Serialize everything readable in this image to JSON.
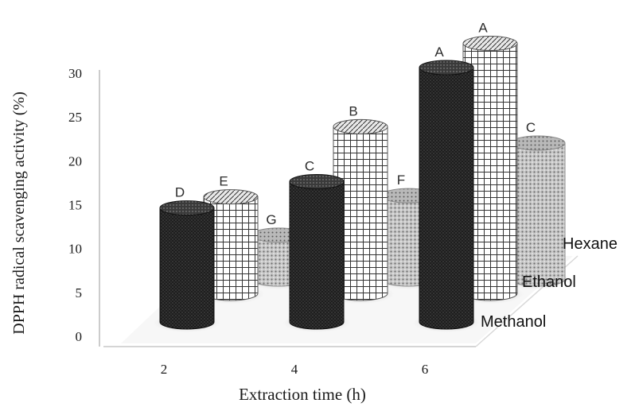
{
  "chart_data": {
    "type": "bar",
    "style": "3d-cylinder",
    "title": "",
    "xlabel": "Extraction time (h)",
    "ylabel": "DPPH radical scavenging activity (%)",
    "ylim": [
      0,
      30
    ],
    "yticks": [
      "0",
      "5",
      "10",
      "15",
      "20",
      "25",
      "30"
    ],
    "categories": [
      "2",
      "4",
      "6"
    ],
    "series": [
      {
        "name": "Methanol",
        "pattern": "dark-dots",
        "values": [
          13,
          16,
          29
        ],
        "letters": [
          "D",
          "C",
          "A"
        ]
      },
      {
        "name": "Ethanol",
        "pattern": "grid",
        "values": [
          11,
          19,
          28.5
        ],
        "letters": [
          "E",
          "B",
          "A"
        ]
      },
      {
        "name": "Hexane",
        "pattern": "light-dots",
        "values": [
          5,
          9.5,
          15.5
        ],
        "letters": [
          "G",
          "F",
          "C"
        ]
      }
    ],
    "grid": false,
    "legend": "series names at right ends of rows"
  }
}
